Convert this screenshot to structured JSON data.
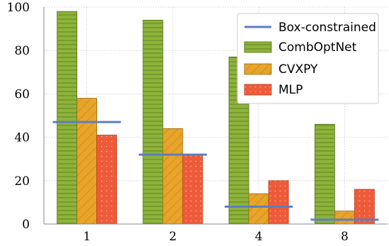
{
  "chart_data": {
    "type": "bar",
    "categories": [
      "1",
      "2",
      "4",
      "8"
    ],
    "ylim": [
      0,
      100
    ],
    "yticks": [
      0,
      20,
      40,
      60,
      80,
      100
    ],
    "grid": true,
    "legend_position": "top-right",
    "series": [
      {
        "name": "CombOptNet",
        "values": [
          98,
          94,
          77,
          46
        ],
        "color": "#8db33a",
        "pattern": "horizontal-lines"
      },
      {
        "name": "CVXPY",
        "values": [
          58,
          44,
          14,
          6
        ],
        "color": "#e8a42a",
        "pattern": "diagonal-lines"
      },
      {
        "name": "MLP",
        "values": [
          41,
          32,
          20,
          16
        ],
        "color": "#ee5b3a",
        "pattern": "dots"
      }
    ],
    "lines": [
      {
        "name": "Box-constrained",
        "values": [
          47,
          32,
          8,
          2
        ],
        "color": "#5b7fbf"
      }
    ]
  }
}
